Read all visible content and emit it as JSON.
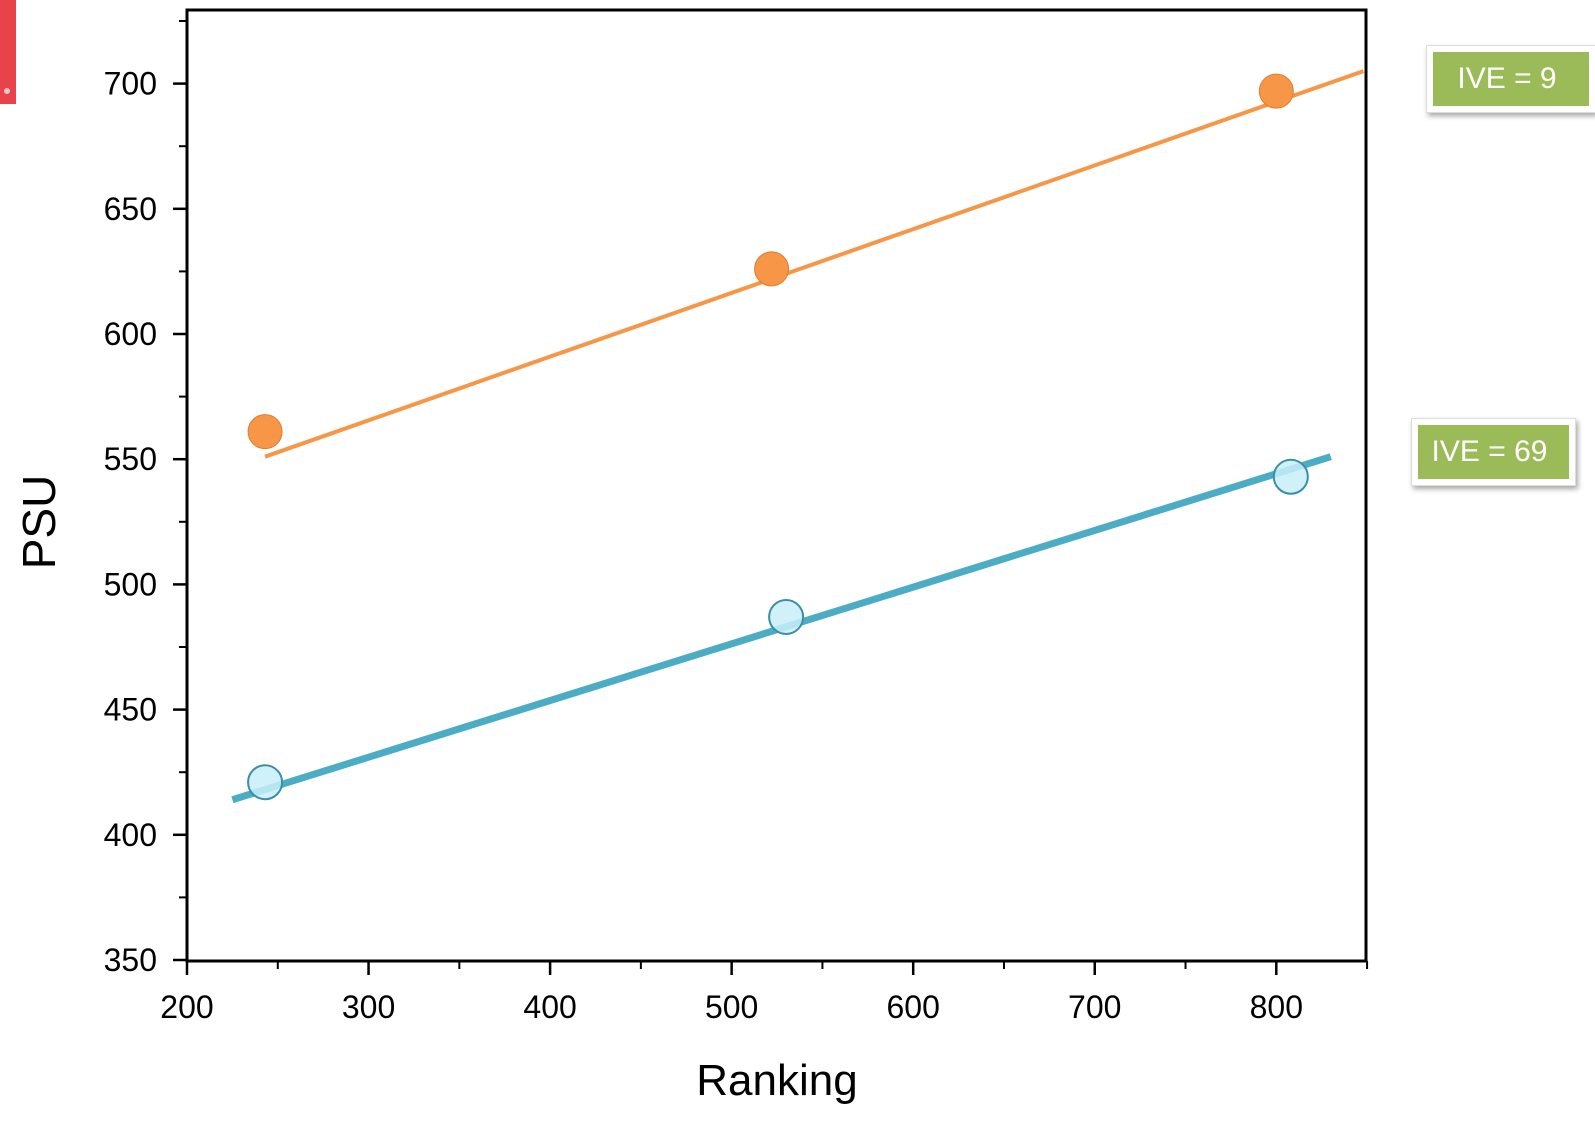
{
  "chart_data": {
    "type": "scatter",
    "xlabel": "Ranking",
    "ylabel": "PSU",
    "xlim": [
      200,
      850
    ],
    "ylim": [
      350,
      730
    ],
    "x_ticks": [
      200,
      300,
      400,
      500,
      600,
      700,
      800
    ],
    "y_ticks": [
      350,
      400,
      450,
      500,
      550,
      600,
      650,
      700
    ],
    "grid": false,
    "series": [
      {
        "points": [
          {
            "x": 243,
            "y": 561
          },
          {
            "x": 522,
            "y": 626
          },
          {
            "x": 800,
            "y": 697
          }
        ],
        "fit_line": {
          "x": [
            243,
            848
          ],
          "y": [
            551,
            705
          ]
        },
        "color": "#f79646",
        "marker": "filled-circle"
      },
      {
        "points": [
          {
            "x": 243,
            "y": 421
          },
          {
            "x": 530,
            "y": 487
          },
          {
            "x": 808,
            "y": 543
          }
        ],
        "fit_line": {
          "x": [
            225,
            830
          ],
          "y": [
            414,
            551
          ]
        },
        "color": "#4bacc6",
        "marker": "hollow-circle"
      }
    ],
    "annotations": [
      {
        "text": "IVE = 9",
        "series": 0,
        "color": "#9bbb59"
      },
      {
        "text": "IVE = 69",
        "series": 1,
        "color": "#9bbb59"
      }
    ]
  }
}
